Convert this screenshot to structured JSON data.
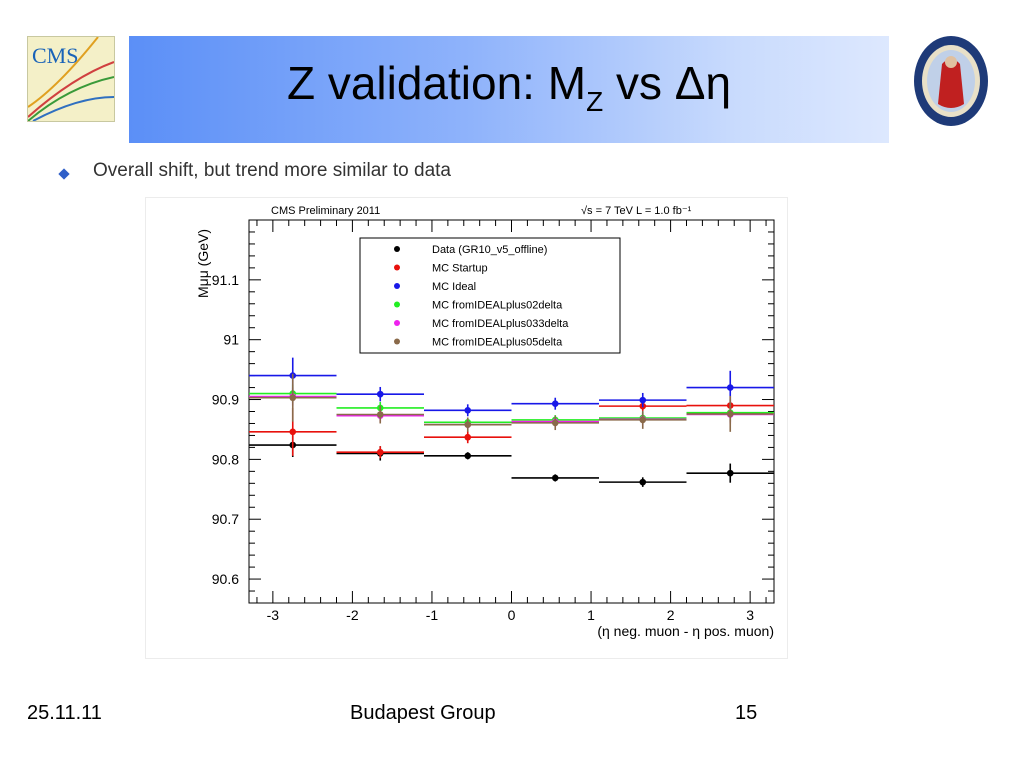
{
  "slide": {
    "title_main": "Z validation: M",
    "title_sub": "Z",
    "title_end": " vs Δη",
    "bullet": "Overall shift, but trend more similar to data",
    "footer_left": "25.11.11",
    "footer_center": "Budapest Group",
    "footer_right": "15",
    "logo_left_text": "CMS"
  },
  "chart_data": {
    "type": "scatter",
    "header_left": "CMS Preliminary 2011",
    "header_right": "√s = 7 TeV  L = 1.0 fb⁻¹",
    "ylabel": "Mμμ (GeV)",
    "xlabel": "(η neg. muon - η pos. muon)",
    "xlim": [
      -3.3,
      3.3
    ],
    "ylim": [
      90.56,
      91.2
    ],
    "xticks": [
      "-3",
      "-2",
      "-1",
      "0",
      "1",
      "2",
      "3"
    ],
    "yticks": [
      "90.6",
      "90.7",
      "90.8",
      "90.9",
      "91",
      "91.1"
    ],
    "bins": [
      [
        -3.3,
        -2.2
      ],
      [
        -2.2,
        -1.1
      ],
      [
        -1.1,
        0
      ],
      [
        0,
        1.1
      ],
      [
        1.1,
        2.2
      ],
      [
        2.2,
        3.3
      ]
    ],
    "x": [
      -2.75,
      -1.65,
      -0.55,
      0.55,
      1.65,
      2.75
    ],
    "legend_position": "top-center",
    "series": [
      {
        "name": "Data (GR10_v5_offline)",
        "color": "#000000",
        "values": [
          90.824,
          90.81,
          90.806,
          90.769,
          90.762,
          90.777
        ],
        "errors": [
          0.02,
          0.012,
          0.006,
          0.006,
          0.008,
          0.016
        ]
      },
      {
        "name": "MC Startup",
        "color": "#e8110c",
        "values": [
          90.846,
          90.812,
          90.837,
          90.863,
          90.889,
          90.89
        ],
        "errors": [
          0.04,
          0.01,
          0.01,
          0.008,
          0.008,
          0.01
        ]
      },
      {
        "name": "MC Ideal",
        "color": "#1818e8",
        "values": [
          90.94,
          90.909,
          90.882,
          90.893,
          90.899,
          90.92
        ],
        "errors": [
          0.03,
          0.012,
          0.01,
          0.01,
          0.012,
          0.028
        ]
      },
      {
        "name": "MC fromIDEALplus02delta",
        "color": "#22ee22",
        "values": [
          90.91,
          90.886,
          90.862,
          90.866,
          90.869,
          90.878
        ],
        "errors": [
          0.015,
          0.01,
          0.008,
          0.008,
          0.01,
          0.015
        ]
      },
      {
        "name": "MC fromIDEALplus033delta",
        "color": "#ee22ee",
        "values": [
          90.905,
          90.873,
          90.858,
          90.863,
          90.867,
          90.875
        ],
        "errors": [
          0.015,
          0.01,
          0.008,
          0.008,
          0.01,
          0.015
        ]
      },
      {
        "name": "MC fromIDEALplus05delta",
        "color": "#8a6a4a",
        "values": [
          90.903,
          90.875,
          90.858,
          90.861,
          90.866,
          90.876
        ],
        "errors": [
          0.04,
          0.015,
          0.012,
          0.012,
          0.015,
          0.03
        ]
      }
    ]
  }
}
